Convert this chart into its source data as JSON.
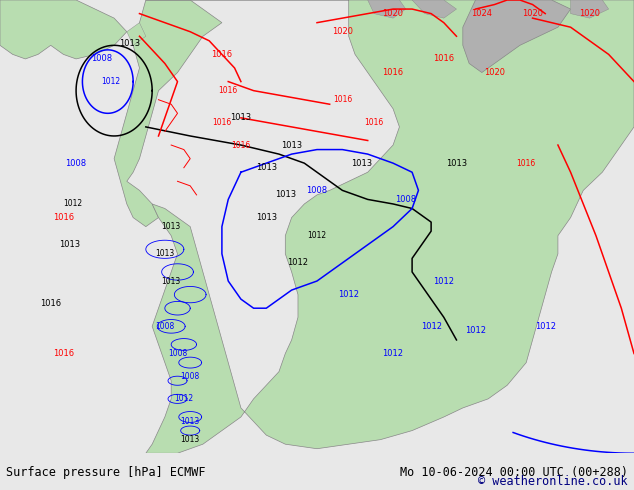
{
  "title_left": "Surface pressure [hPa] ECMWF",
  "title_right": "Mo 10-06-2024 00:00 UTC (00+288)",
  "copyright": "© weatheronline.co.uk",
  "bg_color": "#e8e8e8",
  "land_color_green": "#b8ddb0",
  "land_color_gray": "#b0b0b0",
  "ocean_color": "#e0e8f0",
  "figure_width": 6.34,
  "figure_height": 4.9,
  "dpi": 100,
  "fontsize_label": 8.5,
  "fontsize_copyright": 8.5,
  "fontsize_isobar": 6.0
}
